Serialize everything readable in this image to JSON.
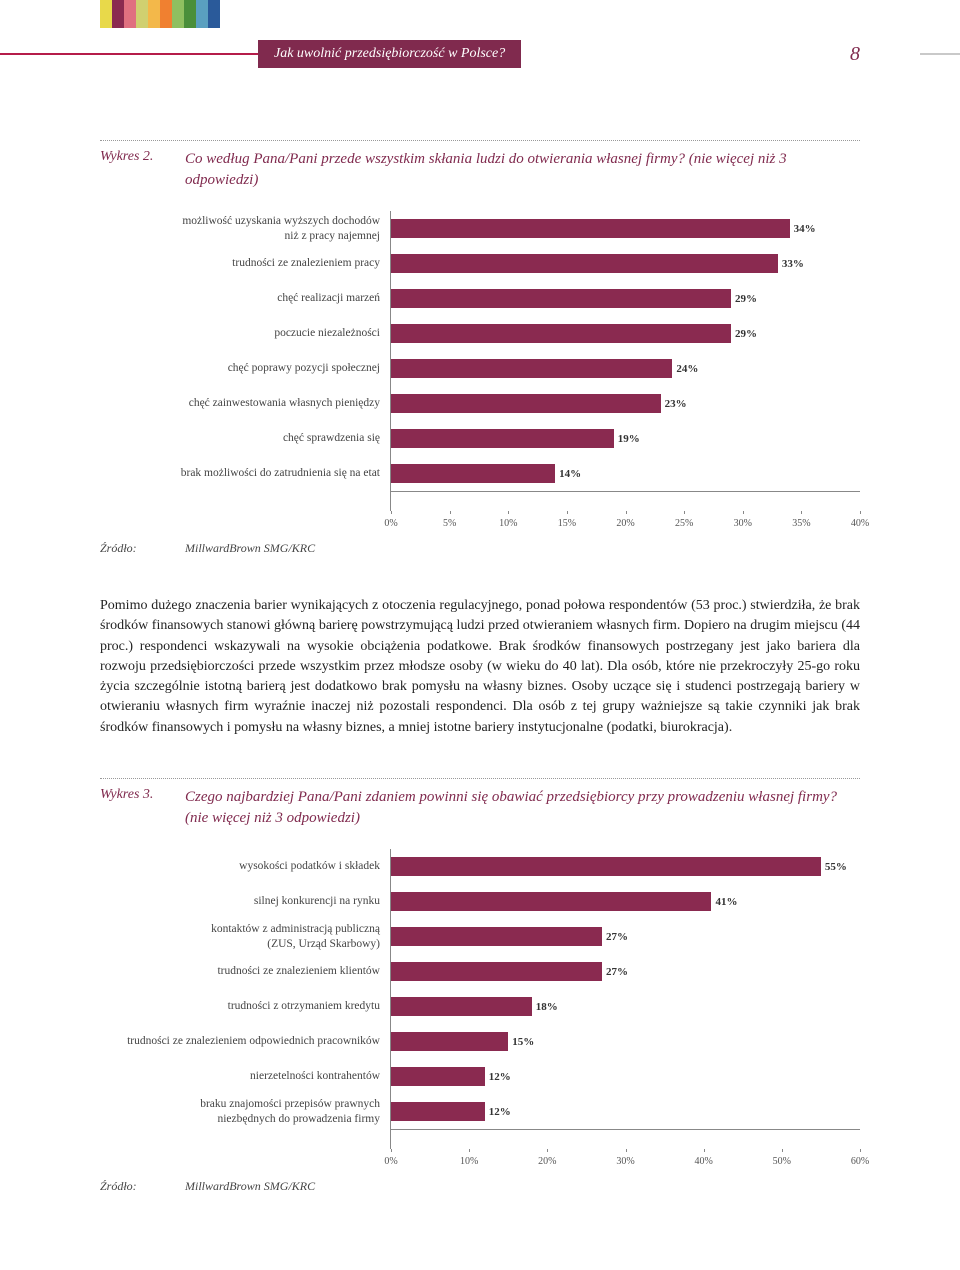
{
  "header": {
    "title": "Jak uwolnić przedsiębiorczość w Polsce?",
    "page_number": "8",
    "strip_colors": [
      "#e8d94a",
      "#8a2a50",
      "#e07080",
      "#d0d070",
      "#f3b84a",
      "#f08030",
      "#8fc060",
      "#4a8f3a",
      "#5aa0c0",
      "#2a5a9a"
    ],
    "line_color_left": "#b51c4a",
    "title_bg": "#802a4e"
  },
  "chart2": {
    "label": "Wykres 2.",
    "title": "Co według Pana/Pani przede wszystkim skłania ludzi do otwierania własnej firmy? (nie więcej niż 3 odpowiedzi)",
    "bar_color": "#8a2a50",
    "xmax": 40,
    "xtick_step": 5,
    "xtick_labels": [
      "0%",
      "5%",
      "10%",
      "15%",
      "20%",
      "25%",
      "30%",
      "35%",
      "40%"
    ],
    "categories": [
      "możliwość uzyskania wyższych dochodów\nniż z pracy najemnej",
      "trudności ze znalezieniem pracy",
      "chęć realizacji marzeń",
      "poczucie niezależności",
      "chęć poprawy pozycji społecznej",
      "chęć zainwestowania własnych pieniędzy",
      "chęć sprawdzenia się",
      "brak możliwości do zatrudnienia się na etat"
    ],
    "values": [
      34,
      33,
      29,
      29,
      24,
      23,
      19,
      14
    ],
    "value_labels": [
      "34%",
      "33%",
      "29%",
      "29%",
      "24%",
      "23%",
      "19%",
      "14%"
    ]
  },
  "source": {
    "label": "Źródło:",
    "value": "MillwardBrown SMG/KRC"
  },
  "body_text": "Pomimo dużego znaczenia barier wynikających z otoczenia regulacyjnego, ponad połowa respondentów (53 proc.) stwierdziła, że brak środków finansowych stanowi główną barierę powstrzymującą ludzi przed otwieraniem własnych firm. Dopiero na drugim miejscu (44 proc.) respondenci wskazywali na wysokie obciążenia podatkowe. Brak środków finansowych postrzegany jest jako bariera dla rozwoju przedsiębiorczości przede wszystkim przez młodsze osoby (w wieku do 40 lat). Dla osób, które nie przekroczyły 25-go roku życia szczególnie istotną barierą jest dodatkowo brak pomysłu na własny biznes. Osoby uczące się i studenci postrzegają bariery w otwieraniu własnych firm wyraźnie inaczej niż pozostali respondenci. Dla osób z tej grupy ważniejsze są takie czynniki jak brak środków finansowych i pomysłu na własny biznes, a mniej istotne bariery instytucjonalne (podatki, biurokracja).",
  "chart3": {
    "label": "Wykres 3.",
    "title": "Czego najbardziej Pana/Pani zdaniem powinni się obawiać przedsiębiorcy przy prowadzeniu własnej firmy? (nie więcej niż 3 odpowiedzi)",
    "bar_color": "#8a2a50",
    "xmax": 60,
    "xtick_step": 10,
    "xtick_labels": [
      "0%",
      "10%",
      "20%",
      "30%",
      "40%",
      "50%",
      "60%"
    ],
    "categories": [
      "wysokości podatków i składek",
      "silnej konkurencji na rynku",
      "kontaktów z administracją publiczną\n(ZUS, Urząd Skarbowy)",
      "trudności ze znalezieniem klientów",
      "trudności z otrzymaniem kredytu",
      "trudności ze znalezieniem odpowiednich pracowników",
      "nierzetelności kontrahentów",
      "braku znajomości przepisów prawnych\nniezbędnych do prowadzenia firmy"
    ],
    "values": [
      55,
      41,
      27,
      27,
      18,
      15,
      12,
      12
    ],
    "value_labels": [
      "55%",
      "41%",
      "27%",
      "27%",
      "18%",
      "15%",
      "12%",
      "12%"
    ]
  }
}
